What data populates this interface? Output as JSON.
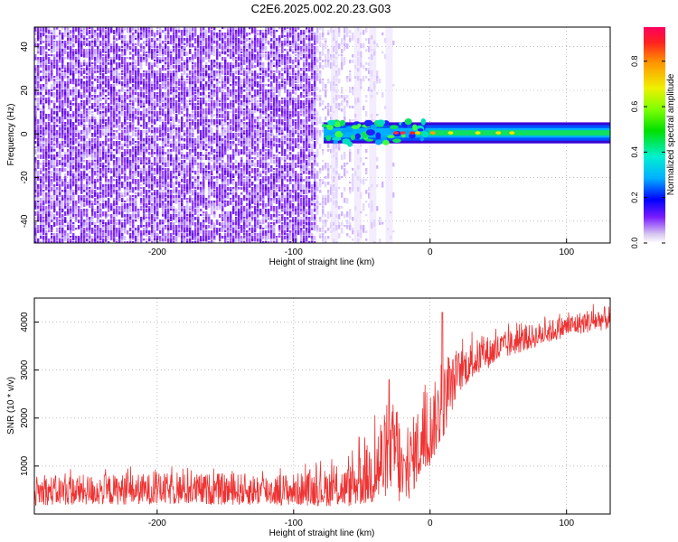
{
  "title": "C2E6.2025.002.20.23.G03",
  "chart_data": [
    {
      "type": "heatmap",
      "xlabel": "Height of straight line (km)",
      "ylabel": "Frequency (Hz)",
      "xlim": [
        -290,
        132
      ],
      "ylim": [
        -50,
        49
      ],
      "xticks": [
        -200,
        -100,
        0,
        100
      ],
      "yticks": [
        -40,
        -20,
        0,
        20,
        40
      ],
      "colorbar": {
        "label": "Normalized spectral amplitude",
        "range": [
          0,
          0.95
        ],
        "ticks": [
          0.0,
          0.2,
          0.4,
          0.6,
          0.8
        ]
      },
      "noise_region": {
        "x_start": -290,
        "x_end": -27
      },
      "signal_band": {
        "x_start": -78,
        "x_end": 132,
        "center_hz": 0.5,
        "half_width_hz": 4
      },
      "grid": true
    },
    {
      "type": "line",
      "xlabel": "Height of straight line (km)",
      "ylabel": "SNR (10 * v/v)",
      "xlim": [
        -290,
        132
      ],
      "ylim": [
        0,
        4500
      ],
      "xticks": [
        -200,
        -100,
        0,
        100
      ],
      "yticks": [
        1000,
        2000,
        3000,
        4000
      ],
      "grid": true,
      "series_color": "#ee3333",
      "envelope": {
        "x": [
          -290,
          -200,
          -100,
          -60,
          -45,
          -35,
          -30,
          -25,
          -20,
          -10,
          0,
          10,
          20,
          30,
          40,
          60,
          80,
          100,
          120,
          132
        ],
        "y_low": [
          180,
          200,
          180,
          150,
          200,
          120,
          600,
          300,
          50,
          600,
          1000,
          1600,
          2500,
          2800,
          3000,
          3300,
          3500,
          3700,
          3800,
          3850
        ],
        "y_high": [
          800,
          850,
          850,
          1000,
          1500,
          2200,
          1900,
          2700,
          1500,
          2200,
          2600,
          3100,
          3400,
          3600,
          3700,
          3850,
          4000,
          4150,
          4300,
          4350
        ]
      },
      "spikes": [
        {
          "x": 9,
          "y": 4200
        },
        {
          "x": -30,
          "y": 2800
        },
        {
          "x": -52,
          "y": 1600
        }
      ]
    }
  ]
}
